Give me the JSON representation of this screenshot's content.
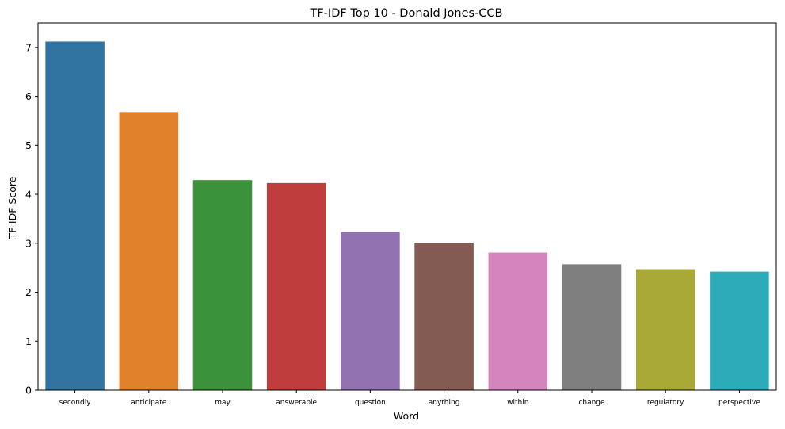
{
  "chart_data": {
    "type": "bar",
    "title": "TF-IDF Top 10 - Donald Jones-CCB",
    "xlabel": "Word",
    "ylabel": "TF-IDF Score",
    "categories": [
      "secondly",
      "anticipate",
      "may",
      "answerable",
      "question",
      "anything",
      "within",
      "change",
      "regulatory",
      "perspective"
    ],
    "values": [
      7.12,
      5.68,
      4.29,
      4.23,
      3.23,
      3.01,
      2.81,
      2.57,
      2.47,
      2.42
    ],
    "colors": [
      "#3274a1",
      "#e1812c",
      "#3a923a",
      "#c03d3e",
      "#9372b2",
      "#845b53",
      "#d684bd",
      "#7f7f7f",
      "#a9aa35",
      "#2eabb8"
    ],
    "ylim": [
      0,
      7.5
    ],
    "yticks": [
      0,
      1,
      2,
      3,
      4,
      5,
      6,
      7
    ],
    "grid": false,
    "legend": "none"
  }
}
